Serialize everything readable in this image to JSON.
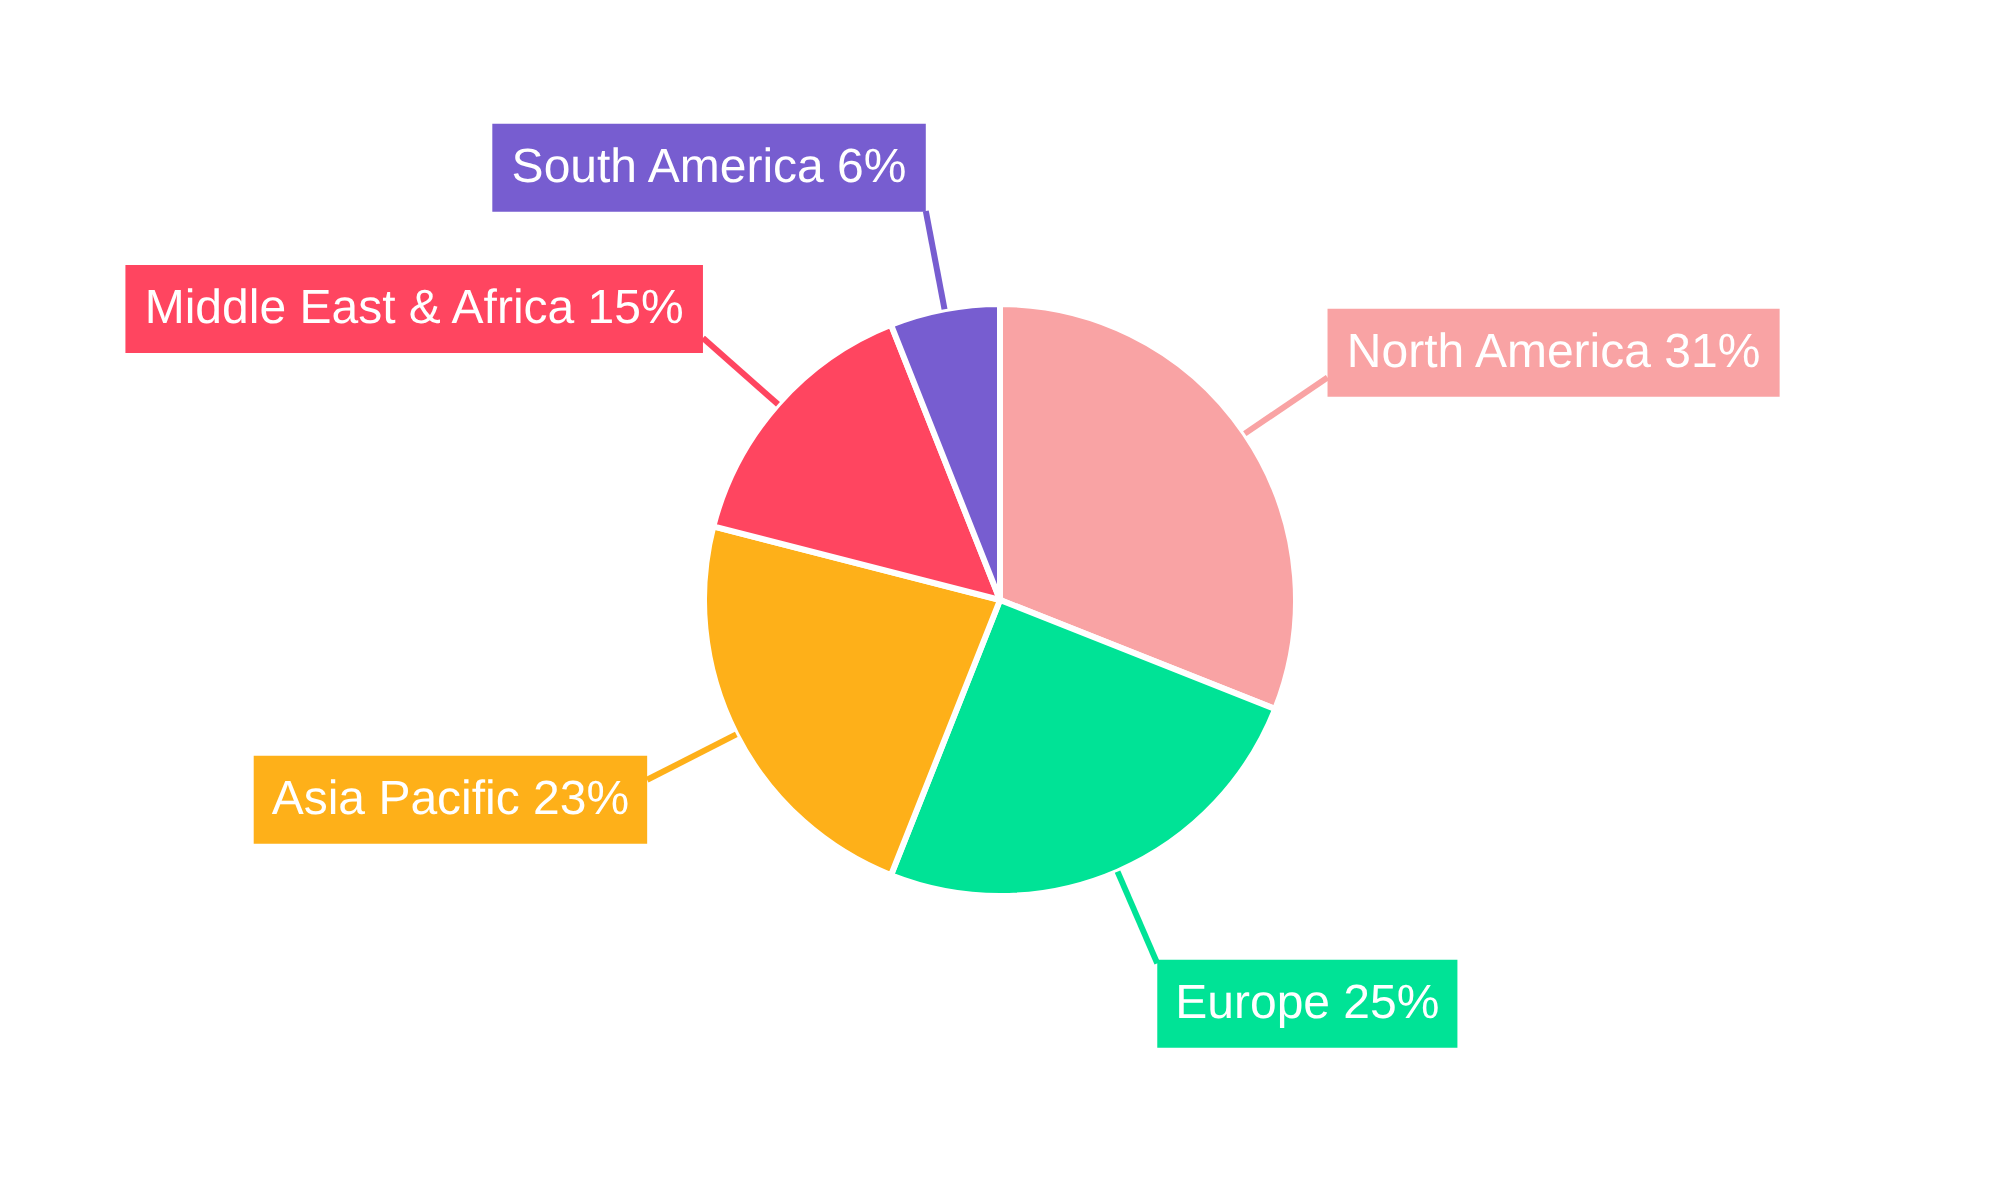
{
  "chart_data": {
    "type": "pie",
    "categories": [
      "North America",
      "Europe",
      "Asia Pacific",
      "Middle East & Africa",
      "South America"
    ],
    "values": [
      31,
      25,
      23,
      15,
      6
    ],
    "value_labels": [
      "31%",
      "25%",
      "23%",
      "15%",
      "6%"
    ],
    "colors": [
      "#f9a3a4",
      "#00e396",
      "#feb019",
      "#ff4560",
      "#775dd0"
    ]
  }
}
